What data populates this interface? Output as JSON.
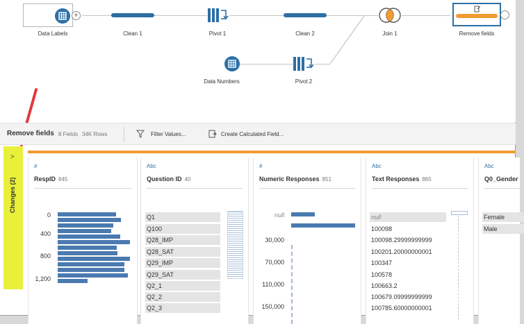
{
  "flow": {
    "nodes": {
      "data_labels": "Data Labels",
      "clean1": "Clean 1",
      "pivot1": "Pivot 1",
      "clean2": "Clean 2",
      "join1": "Join 1",
      "remove_fields": "Remove fields",
      "data_numbers": "Data Numbers",
      "pivot2": "Pivot 2"
    },
    "colors": {
      "blue": "#2c6fa5",
      "orange": "#f29b30"
    }
  },
  "toolbar": {
    "step_name": "Remove fields",
    "fields": "8 Fields",
    "rows": "34K Rows",
    "filter": "Filter Values...",
    "calc": "Create Calculated Field..."
  },
  "changes": {
    "label": "Changes (2)",
    "chevron": ">"
  },
  "cards": {
    "respid": {
      "type": "#",
      "title": "RespID",
      "count": "845",
      "axis": [
        "0",
        "400",
        "800",
        "1,200"
      ]
    },
    "question_id": {
      "type": "Abc",
      "title": "Question ID",
      "count": "40",
      "values": [
        "Q1",
        "Q100",
        "Q28_IMP",
        "Q28_SAT",
        "Q29_IMP",
        "Q29_SAT",
        "Q2_1",
        "Q2_2",
        "Q2_3"
      ]
    },
    "numeric": {
      "type": "#",
      "title": "Numeric Responses",
      "count": "851",
      "axis": [
        "null",
        "30,000",
        "70,000",
        "110,000",
        "150,000"
      ]
    },
    "text": {
      "type": "Abc",
      "title": "Text Responses",
      "count": "865",
      "values": [
        "null",
        "100098",
        "100098.29999999999",
        "100201.20000000001",
        "100347",
        "100578",
        "100663.2",
        "100679.09999999999",
        "100785.60000000001"
      ]
    },
    "q0": {
      "type": "Abc",
      "title": "Q0_Gender",
      "values": [
        "Female",
        "Male"
      ]
    }
  }
}
